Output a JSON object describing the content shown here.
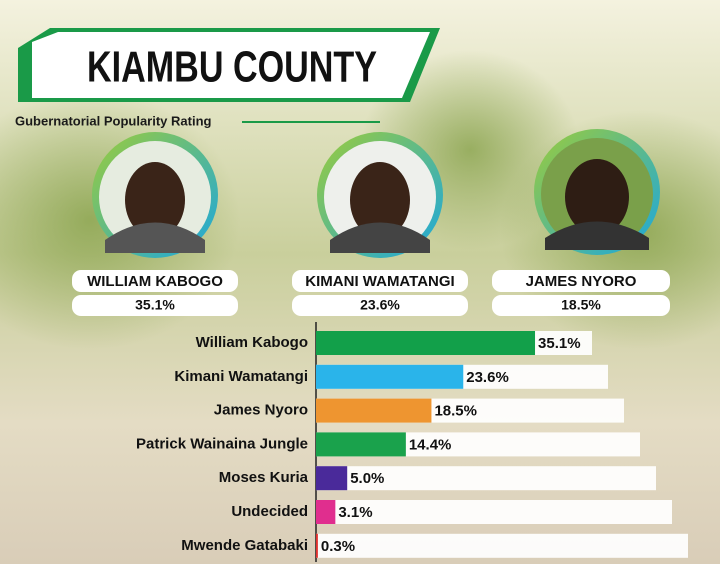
{
  "chart_data": {
    "type": "bar",
    "orientation": "horizontal",
    "title": "KIAMBU COUNTY",
    "subtitle": "Gubernatorial Popularity Rating",
    "categories": [
      "William Kabogo",
      "Kimani Wamatangi",
      "James Nyoro",
      "Patrick Wainaina Jungle",
      "Moses Kuria",
      "Undecided",
      "Mwende Gatabaki"
    ],
    "values": [
      35.1,
      23.6,
      18.5,
      14.4,
      5.0,
      3.1,
      0.3
    ],
    "value_labels": [
      "35.1%",
      "23.6%",
      "18.5%",
      "14.4%",
      "5.0%",
      "3.1%",
      "0.3%"
    ],
    "colors": [
      "#12a04a",
      "#2ab4ea",
      "#ee9530",
      "#1aa24c",
      "#4a2a9a",
      "#e02e8e",
      "#e0312e"
    ]
  },
  "candidates": [
    {
      "name": "WILLIAM KABOGO",
      "rating": "35.1%"
    },
    {
      "name": "KIMANI WAMATANGI",
      "rating": "23.6%"
    },
    {
      "name": "JAMES NYORO",
      "rating": "18.5%"
    }
  ]
}
